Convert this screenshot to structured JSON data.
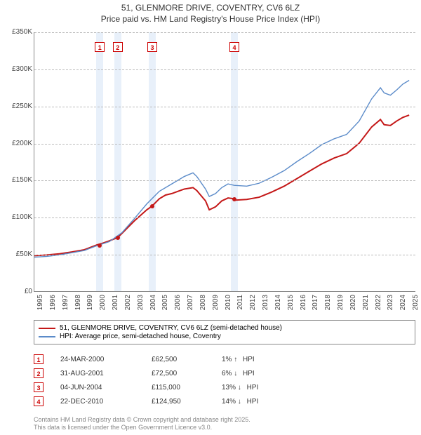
{
  "title": "51, GLENMORE DRIVE, COVENTRY, CV6 6LZ",
  "subtitle": "Price paid vs. HM Land Registry's House Price Index (HPI)",
  "chart": {
    "type": "line",
    "background_color": "#ffffff",
    "grid_color": "#bbbbbb",
    "sale_band_color": "#e8f0fa",
    "x_years": [
      1995,
      1996,
      1997,
      1998,
      1999,
      2000,
      2001,
      2002,
      2003,
      2004,
      2005,
      2006,
      2007,
      2008,
      2009,
      2010,
      2011,
      2012,
      2013,
      2014,
      2015,
      2016,
      2017,
      2018,
      2019,
      2020,
      2021,
      2022,
      2023,
      2024,
      2025
    ],
    "y_ticks": [
      0,
      50000,
      100000,
      150000,
      200000,
      250000,
      300000,
      350000
    ],
    "y_tick_labels": [
      "£0",
      "£50K",
      "£100K",
      "£150K",
      "£200K",
      "£250K",
      "£300K",
      "£350K"
    ],
    "ylim": [
      0,
      350000
    ],
    "xlim": [
      1995,
      2025.5
    ],
    "series": [
      {
        "name": "51, GLENMORE DRIVE, COVENTRY, CV6 6LZ (semi-detached house)",
        "color": "#c41818",
        "width": 2,
        "points": [
          [
            1995,
            48000
          ],
          [
            1996,
            49000
          ],
          [
            1997,
            50500
          ],
          [
            1998,
            53000
          ],
          [
            1999,
            56000
          ],
          [
            2000,
            62500
          ],
          [
            2000.5,
            65000
          ],
          [
            2001,
            68000
          ],
          [
            2001.66,
            72500
          ],
          [
            2002,
            78000
          ],
          [
            2003,
            95000
          ],
          [
            2004,
            110000
          ],
          [
            2004.42,
            115000
          ],
          [
            2005,
            125000
          ],
          [
            2005.5,
            130000
          ],
          [
            2006,
            132000
          ],
          [
            2007,
            138000
          ],
          [
            2007.7,
            140000
          ],
          [
            2008,
            136000
          ],
          [
            2008.7,
            122000
          ],
          [
            2009,
            110000
          ],
          [
            2009.5,
            114000
          ],
          [
            2010,
            122000
          ],
          [
            2010.5,
            126000
          ],
          [
            2010.98,
            124950
          ],
          [
            2011,
            123000
          ],
          [
            2012,
            124000
          ],
          [
            2013,
            127000
          ],
          [
            2014,
            134000
          ],
          [
            2015,
            142000
          ],
          [
            2016,
            152000
          ],
          [
            2017,
            162000
          ],
          [
            2018,
            172000
          ],
          [
            2019,
            180000
          ],
          [
            2020,
            186000
          ],
          [
            2021,
            200000
          ],
          [
            2022,
            222000
          ],
          [
            2022.7,
            232000
          ],
          [
            2023,
            225000
          ],
          [
            2023.5,
            224000
          ],
          [
            2024,
            230000
          ],
          [
            2024.5,
            235000
          ],
          [
            2025,
            238000
          ]
        ]
      },
      {
        "name": "HPI: Average price, semi-detached house, Coventry",
        "color": "#5b8bc9",
        "width": 1.4,
        "points": [
          [
            1995,
            46000
          ],
          [
            1996,
            47000
          ],
          [
            1997,
            49000
          ],
          [
            1998,
            52000
          ],
          [
            1999,
            55000
          ],
          [
            2000,
            61500
          ],
          [
            2001,
            67000
          ],
          [
            2002,
            79000
          ],
          [
            2003,
            98000
          ],
          [
            2004,
            118000
          ],
          [
            2005,
            135000
          ],
          [
            2006,
            145000
          ],
          [
            2007,
            155000
          ],
          [
            2007.7,
            160000
          ],
          [
            2008,
            155000
          ],
          [
            2008.7,
            138000
          ],
          [
            2009,
            128000
          ],
          [
            2009.5,
            132000
          ],
          [
            2010,
            140000
          ],
          [
            2010.5,
            145000
          ],
          [
            2011,
            143000
          ],
          [
            2012,
            142000
          ],
          [
            2013,
            146000
          ],
          [
            2014,
            154000
          ],
          [
            2015,
            163000
          ],
          [
            2016,
            175000
          ],
          [
            2017,
            186000
          ],
          [
            2018,
            198000
          ],
          [
            2019,
            206000
          ],
          [
            2020,
            212000
          ],
          [
            2021,
            230000
          ],
          [
            2022,
            260000
          ],
          [
            2022.7,
            275000
          ],
          [
            2023,
            268000
          ],
          [
            2023.5,
            265000
          ],
          [
            2024,
            272000
          ],
          [
            2024.5,
            280000
          ],
          [
            2025,
            285000
          ]
        ]
      }
    ],
    "sales": [
      {
        "n": "1",
        "x": 2000.23,
        "date": "24-MAR-2000",
        "price_val": 62500,
        "price": "£62,500",
        "diff": "1%",
        "dir": "↑"
      },
      {
        "n": "2",
        "x": 2001.66,
        "date": "31-AUG-2001",
        "price_val": 72500,
        "price": "£72,500",
        "diff": "6%",
        "dir": "↓"
      },
      {
        "n": "3",
        "x": 2004.42,
        "date": "04-JUN-2004",
        "price_val": 115000,
        "price": "£115,000",
        "diff": "13%",
        "dir": "↓"
      },
      {
        "n": "4",
        "x": 2010.98,
        "date": "22-DEC-2010",
        "price_val": 124950,
        "price": "£124,950",
        "diff": "14%",
        "dir": "↓"
      }
    ],
    "sale_marker_top": 14,
    "hpi_label": "HPI",
    "title_fontsize": 12,
    "label_fontsize": 10
  },
  "footer": {
    "line1": "Contains HM Land Registry data © Crown copyright and database right 2025.",
    "line2": "This data is licensed under the Open Government Licence v3.0."
  }
}
